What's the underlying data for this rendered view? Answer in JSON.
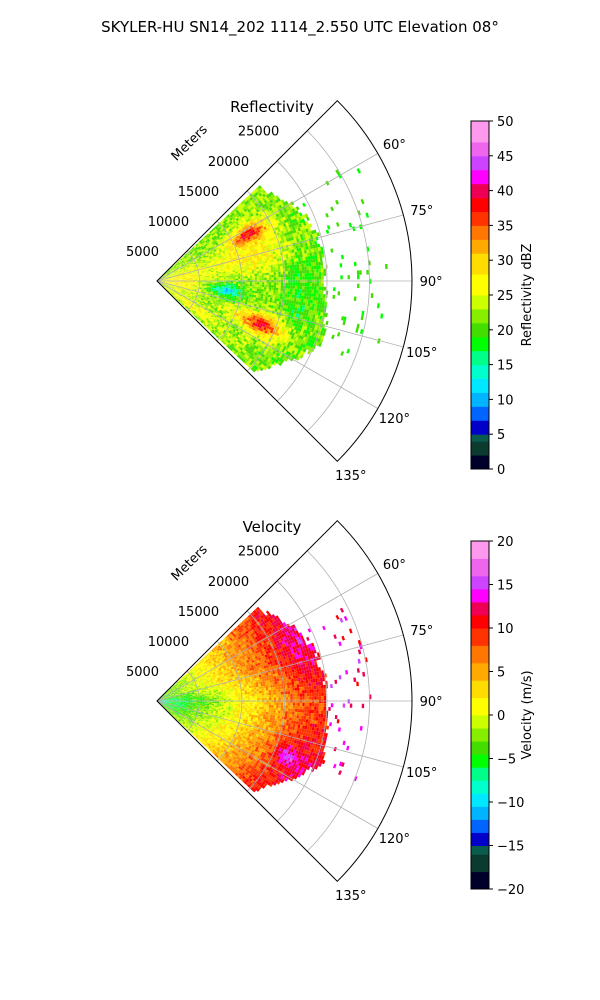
{
  "figure_title": "SKYLER-HU  SN14_202  1114_2.550 UTC Elevation 08°",
  "colors": {
    "grid": "#b0b0b0",
    "axes": "#000000",
    "background": "#ffffff"
  },
  "chart_data": [
    {
      "type": "polar-sector-ppi",
      "title": "Reflectivity",
      "range_label": "Meters",
      "range_unit": "m",
      "range_max": 30000,
      "range_ticks": [
        5000,
        10000,
        15000,
        20000,
        25000
      ],
      "range_tick_labels": [
        "5000",
        "10000",
        "15000",
        "20000",
        "25000"
      ],
      "azimuth_range_deg": [
        45,
        135
      ],
      "azimuth_grid_deg": [
        60,
        75,
        90,
        105,
        120,
        135
      ],
      "azimuth_tick_labels": [
        "60°",
        "75°",
        "90°",
        "105°",
        "120°",
        "135°"
      ],
      "colorbar": {
        "label": "Reflectivity dBZ",
        "min": 0,
        "max": 50,
        "ticks": [
          0,
          5,
          10,
          15,
          20,
          25,
          30,
          35,
          40,
          45,
          50
        ],
        "tick_labels": [
          "0",
          "5",
          "10",
          "15",
          "20",
          "25",
          "30",
          "35",
          "40",
          "45",
          "50"
        ],
        "stops": [
          {
            "value": 0,
            "color": "#00002a"
          },
          {
            "value": 2,
            "color": "#0b3b2e"
          },
          {
            "value": 4,
            "color": "#0a5c4f"
          },
          {
            "value": 5,
            "color": "#0000c8"
          },
          {
            "value": 7,
            "color": "#0064ff"
          },
          {
            "value": 9,
            "color": "#00b4ff"
          },
          {
            "value": 11,
            "color": "#00e8ff"
          },
          {
            "value": 13,
            "color": "#00ffcc"
          },
          {
            "value": 15,
            "color": "#00ff88"
          },
          {
            "value": 17,
            "color": "#00ff00"
          },
          {
            "value": 19,
            "color": "#44dd00"
          },
          {
            "value": 21,
            "color": "#88ee00"
          },
          {
            "value": 23,
            "color": "#ccff00"
          },
          {
            "value": 25,
            "color": "#ffff00"
          },
          {
            "value": 28,
            "color": "#ffdd00"
          },
          {
            "value": 31,
            "color": "#ffaa00"
          },
          {
            "value": 33,
            "color": "#ff7700"
          },
          {
            "value": 35,
            "color": "#ff3300"
          },
          {
            "value": 37,
            "color": "#ff0000"
          },
          {
            "value": 39,
            "color": "#ee0055"
          },
          {
            "value": 41,
            "color": "#ff00ff"
          },
          {
            "value": 43,
            "color": "#cc44ff"
          },
          {
            "value": 45,
            "color": "#ee66ee"
          },
          {
            "value": 47,
            "color": "#ff99ee"
          },
          {
            "value": 50,
            "color": "#ffe8ff"
          }
        ]
      },
      "field": {
        "description_keys": "azimuth-deg range-m value",
        "noise_amplitude": 3,
        "outer_edge_m": [
          [
            50,
            16500
          ],
          [
            60,
            18500
          ],
          [
            70,
            19500
          ],
          [
            80,
            20000
          ],
          [
            90,
            20000
          ],
          [
            100,
            20500
          ],
          [
            110,
            21000
          ],
          [
            120,
            18500
          ],
          [
            130,
            16000
          ]
        ],
        "base_value": 22,
        "features": [
          {
            "az": 90,
            "r": 2500,
            "saz": 25,
            "sr": 3000,
            "amp": 6
          },
          {
            "az": 62,
            "r": 12000,
            "saz": 5,
            "sr": 2500,
            "amp": 15
          },
          {
            "az": 112,
            "r": 13000,
            "saz": 5,
            "sr": 3000,
            "amp": 16
          },
          {
            "az": 75,
            "r": 11000,
            "saz": 10,
            "sr": 5000,
            "amp": 6
          },
          {
            "az": 97,
            "r": 8000,
            "saz": 5,
            "sr": 2000,
            "amp": -10
          },
          {
            "az": 95,
            "r": 17000,
            "saz": 25,
            "sr": 2500,
            "amp": -3
          },
          {
            "az": 125,
            "r": 5000,
            "saz": 5,
            "sr": 4000,
            "amp": 5
          }
        ],
        "scatter_band_m": [
          19000,
          27000
        ],
        "scatter_value": 19
      }
    },
    {
      "type": "polar-sector-ppi",
      "title": "Velocity",
      "range_label": "Meters",
      "range_unit": "m",
      "range_max": 30000,
      "range_ticks": [
        5000,
        10000,
        15000,
        20000,
        25000
      ],
      "range_tick_labels": [
        "5000",
        "10000",
        "15000",
        "20000",
        "25000"
      ],
      "azimuth_range_deg": [
        45,
        135
      ],
      "azimuth_grid_deg": [
        60,
        75,
        90,
        105,
        120,
        135
      ],
      "azimuth_tick_labels": [
        "60°",
        "75°",
        "90°",
        "105°",
        "120°",
        "135°"
      ],
      "colorbar": {
        "label": "Velocity (m/s)",
        "min": -20,
        "max": 20,
        "ticks": [
          -20,
          -15,
          -10,
          -5,
          0,
          5,
          10,
          15,
          20
        ],
        "tick_labels": [
          "−20",
          "−15",
          "−10",
          "−5",
          "0",
          "5",
          "10",
          "15",
          "20"
        ],
        "stops": [
          {
            "value": -20,
            "color": "#00002a"
          },
          {
            "value": -18,
            "color": "#0b3b2e"
          },
          {
            "value": -16,
            "color": "#0a5c4f"
          },
          {
            "value": -15,
            "color": "#0000c8"
          },
          {
            "value": -13.5,
            "color": "#0064ff"
          },
          {
            "value": -12,
            "color": "#00b4ff"
          },
          {
            "value": -10.5,
            "color": "#00e8ff"
          },
          {
            "value": -9,
            "color": "#00ffcc"
          },
          {
            "value": -7.5,
            "color": "#00ff88"
          },
          {
            "value": -6,
            "color": "#00ff00"
          },
          {
            "value": -4.5,
            "color": "#44dd00"
          },
          {
            "value": -3,
            "color": "#88ee00"
          },
          {
            "value": -1.5,
            "color": "#ccff00"
          },
          {
            "value": 0,
            "color": "#ffff00"
          },
          {
            "value": 2,
            "color": "#ffdd00"
          },
          {
            "value": 4,
            "color": "#ffaa00"
          },
          {
            "value": 6,
            "color": "#ff7700"
          },
          {
            "value": 8,
            "color": "#ff3300"
          },
          {
            "value": 10,
            "color": "#ff0000"
          },
          {
            "value": 11.5,
            "color": "#ee0055"
          },
          {
            "value": 13,
            "color": "#ff00ff"
          },
          {
            "value": 14.5,
            "color": "#cc44ff"
          },
          {
            "value": 16,
            "color": "#ee66ee"
          },
          {
            "value": 18,
            "color": "#ff99ee"
          },
          {
            "value": 20,
            "color": "#ffe8ff"
          }
        ]
      },
      "field": {
        "description_keys": "azimuth-deg range-m value",
        "noise_amplitude": 2,
        "outer_edge_m": [
          [
            50,
            16500
          ],
          [
            60,
            18500
          ],
          [
            70,
            19500
          ],
          [
            80,
            20000
          ],
          [
            90,
            20000
          ],
          [
            100,
            20500
          ],
          [
            110,
            21000
          ],
          [
            120,
            18500
          ],
          [
            130,
            16000
          ]
        ],
        "base_value": 3,
        "range_gradient": [
          [
            0,
            -8
          ],
          [
            3000,
            -6
          ],
          [
            7000,
            -2
          ],
          [
            12000,
            3
          ],
          [
            18000,
            9
          ]
        ],
        "azimuth_boost": [
          [
            50,
            4
          ],
          [
            70,
            4
          ],
          [
            90,
            0
          ],
          [
            110,
            2
          ],
          [
            130,
            4
          ]
        ],
        "features": [
          {
            "az": 112,
            "r": 16500,
            "saz": 4,
            "sr": 1500,
            "amp": 5
          }
        ],
        "scatter_band_m": [
          19000,
          25000
        ],
        "scatter_value": 13
      }
    }
  ]
}
